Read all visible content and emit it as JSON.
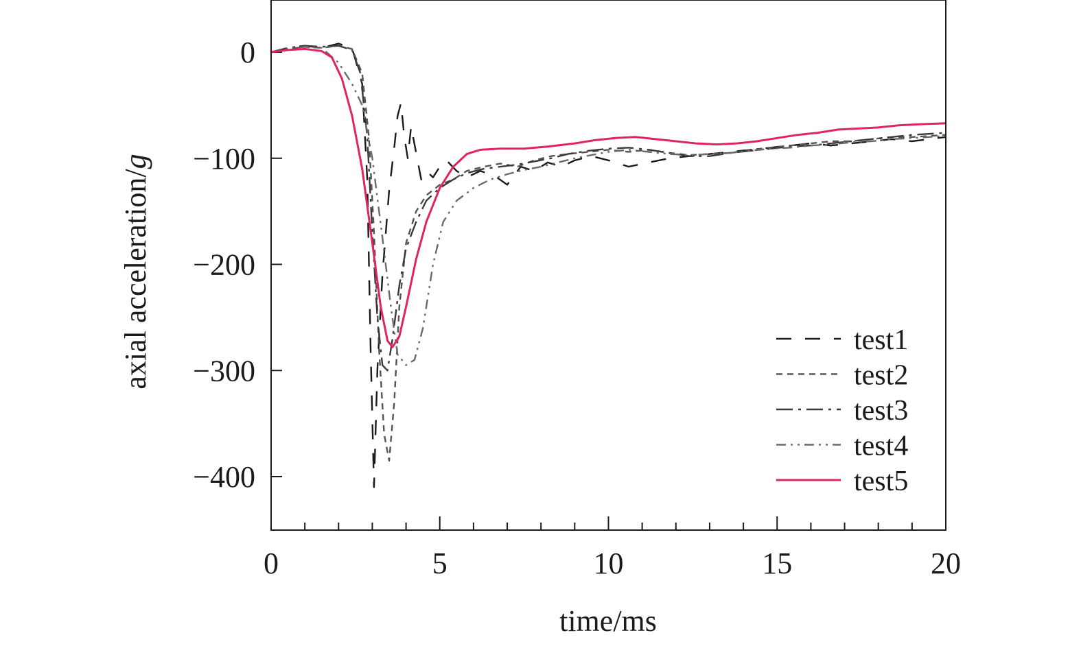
{
  "chart_data": {
    "type": "line",
    "title": "",
    "xlabel": "time/ms",
    "ylabel_main": "axial acceleration/",
    "ylabel_unit": "g",
    "xlim": [
      0,
      20
    ],
    "ylim": [
      -450,
      50
    ],
    "x_ticks": [
      0,
      5,
      10,
      15,
      20
    ],
    "x_tick_labels": [
      "0",
      "5",
      "10",
      "15",
      "20"
    ],
    "x_minor_step": 1,
    "y_ticks": [
      0,
      -100,
      -200,
      -300,
      -400
    ],
    "y_tick_labels": [
      "0",
      "−100",
      "−200",
      "−300",
      "−400"
    ],
    "grid": false,
    "legend_position": "lower-right",
    "series": [
      {
        "name": "test1",
        "color": "#1a1a1a",
        "dash": "22,20",
        "points": [
          [
            0,
            0
          ],
          [
            0.5,
            4
          ],
          [
            1,
            6
          ],
          [
            1.5,
            4
          ],
          [
            2,
            8
          ],
          [
            2.4,
            4
          ],
          [
            2.7,
            -30
          ],
          [
            2.85,
            -120
          ],
          [
            2.95,
            -280
          ],
          [
            3.05,
            -410
          ],
          [
            3.15,
            -300
          ],
          [
            3.3,
            -210
          ],
          [
            3.5,
            -130
          ],
          [
            3.65,
            -90
          ],
          [
            3.75,
            -60
          ],
          [
            3.85,
            -48
          ],
          [
            3.95,
            -80
          ],
          [
            4.05,
            -100
          ],
          [
            4.15,
            -70
          ],
          [
            4.3,
            -95
          ],
          [
            4.45,
            -120
          ],
          [
            4.6,
            -112
          ],
          [
            4.8,
            -118
          ],
          [
            5,
            -108
          ],
          [
            5.2,
            -102
          ],
          [
            5.5,
            -112
          ],
          [
            5.8,
            -118
          ],
          [
            6.2,
            -112
          ],
          [
            6.6,
            -116
          ],
          [
            7,
            -125
          ],
          [
            7.4,
            -108
          ],
          [
            7.8,
            -112
          ],
          [
            8.2,
            -104
          ],
          [
            8.6,
            -108
          ],
          [
            9,
            -102
          ],
          [
            9.5,
            -98
          ],
          [
            10,
            -102
          ],
          [
            10.6,
            -108
          ],
          [
            11.2,
            -104
          ],
          [
            11.8,
            -100
          ],
          [
            12.4,
            -98
          ],
          [
            13,
            -96
          ],
          [
            13.6,
            -94
          ],
          [
            14.2,
            -92
          ],
          [
            14.8,
            -90
          ],
          [
            15.4,
            -88
          ],
          [
            16,
            -86
          ],
          [
            16.6,
            -88
          ],
          [
            17.2,
            -86
          ],
          [
            17.8,
            -84
          ],
          [
            18.4,
            -82
          ],
          [
            19,
            -84
          ],
          [
            19.5,
            -82
          ],
          [
            20,
            -80
          ]
        ]
      },
      {
        "name": "test2",
        "color": "#555555",
        "dash": "9,7",
        "points": [
          [
            0,
            0
          ],
          [
            0.5,
            3
          ],
          [
            1,
            5
          ],
          [
            1.5,
            4
          ],
          [
            2,
            6
          ],
          [
            2.4,
            3
          ],
          [
            2.7,
            -20
          ],
          [
            2.9,
            -80
          ],
          [
            3.05,
            -170
          ],
          [
            3.2,
            -280
          ],
          [
            3.35,
            -360
          ],
          [
            3.5,
            -385
          ],
          [
            3.65,
            -330
          ],
          [
            3.8,
            -240
          ],
          [
            4,
            -180
          ],
          [
            4.3,
            -150
          ],
          [
            4.6,
            -135
          ],
          [
            5,
            -125
          ],
          [
            5.4,
            -120
          ],
          [
            5.8,
            -112
          ],
          [
            6.3,
            -108
          ],
          [
            6.8,
            -105
          ],
          [
            7.3,
            -108
          ],
          [
            7.8,
            -102
          ],
          [
            8.3,
            -98
          ],
          [
            8.8,
            -96
          ],
          [
            9.4,
            -94
          ],
          [
            10,
            -92
          ],
          [
            10.6,
            -94
          ],
          [
            11.2,
            -92
          ],
          [
            11.8,
            -95
          ],
          [
            12.4,
            -97
          ],
          [
            13,
            -96
          ],
          [
            13.6,
            -95
          ],
          [
            14.2,
            -92
          ],
          [
            14.8,
            -90
          ],
          [
            15.4,
            -88
          ],
          [
            16,
            -86
          ],
          [
            16.6,
            -84
          ],
          [
            17.2,
            -84
          ],
          [
            17.8,
            -82
          ],
          [
            18.4,
            -80
          ],
          [
            19,
            -80
          ],
          [
            19.5,
            -79
          ],
          [
            20,
            -78
          ]
        ]
      },
      {
        "name": "test3",
        "color": "#3a3a3a",
        "dash": "24,8,4,8",
        "points": [
          [
            0,
            0
          ],
          [
            0.5,
            4
          ],
          [
            1,
            6
          ],
          [
            1.5,
            5
          ],
          [
            2,
            6
          ],
          [
            2.4,
            2
          ],
          [
            2.65,
            -20
          ],
          [
            2.85,
            -80
          ],
          [
            3,
            -170
          ],
          [
            3.15,
            -250
          ],
          [
            3.3,
            -295
          ],
          [
            3.45,
            -300
          ],
          [
            3.6,
            -270
          ],
          [
            3.8,
            -220
          ],
          [
            4,
            -185
          ],
          [
            4.3,
            -160
          ],
          [
            4.6,
            -140
          ],
          [
            5,
            -128
          ],
          [
            5.4,
            -120
          ],
          [
            5.8,
            -114
          ],
          [
            6.3,
            -110
          ],
          [
            6.8,
            -108
          ],
          [
            7.3,
            -106
          ],
          [
            7.8,
            -103
          ],
          [
            8.3,
            -100
          ],
          [
            8.8,
            -96
          ],
          [
            9.4,
            -93
          ],
          [
            10,
            -91
          ],
          [
            10.6,
            -90
          ],
          [
            11.2,
            -92
          ],
          [
            11.8,
            -95
          ],
          [
            12.4,
            -98
          ],
          [
            13,
            -98
          ],
          [
            13.6,
            -95
          ],
          [
            14.2,
            -93
          ],
          [
            14.8,
            -91
          ],
          [
            15.4,
            -89
          ],
          [
            16,
            -88
          ],
          [
            16.6,
            -86
          ],
          [
            17.2,
            -84
          ],
          [
            17.8,
            -82
          ],
          [
            18.4,
            -80
          ],
          [
            19,
            -78
          ],
          [
            19.5,
            -77
          ],
          [
            20,
            -76
          ]
        ]
      },
      {
        "name": "test4",
        "color": "#6a6a6a",
        "dash": "14,7,3,7,3,7",
        "points": [
          [
            0,
            0
          ],
          [
            0.5,
            3
          ],
          [
            1,
            5
          ],
          [
            1.5,
            4
          ],
          [
            2,
            -10
          ],
          [
            2.4,
            -30
          ],
          [
            2.7,
            -50
          ],
          [
            3,
            -100
          ],
          [
            3.3,
            -175
          ],
          [
            3.55,
            -240
          ],
          [
            3.75,
            -285
          ],
          [
            4,
            -295
          ],
          [
            4.25,
            -290
          ],
          [
            4.5,
            -260
          ],
          [
            4.8,
            -200
          ],
          [
            5.1,
            -160
          ],
          [
            5.5,
            -140
          ],
          [
            6,
            -128
          ],
          [
            6.5,
            -120
          ],
          [
            7,
            -115
          ],
          [
            7.5,
            -111
          ],
          [
            8,
            -108
          ],
          [
            8.5,
            -104
          ],
          [
            9,
            -100
          ],
          [
            9.5,
            -97
          ],
          [
            10,
            -94
          ],
          [
            10.6,
            -92
          ],
          [
            11.2,
            -94
          ],
          [
            11.8,
            -96
          ],
          [
            12.4,
            -97
          ],
          [
            13,
            -96
          ],
          [
            13.6,
            -95
          ],
          [
            14.2,
            -93
          ],
          [
            14.8,
            -91
          ],
          [
            15.4,
            -90
          ],
          [
            16,
            -88
          ],
          [
            16.6,
            -87
          ],
          [
            17.2,
            -85
          ],
          [
            17.8,
            -84
          ],
          [
            18.4,
            -82
          ],
          [
            19,
            -81
          ],
          [
            19.5,
            -80
          ],
          [
            20,
            -79
          ]
        ]
      },
      {
        "name": "test5",
        "color": "#e0245e",
        "dash": "",
        "points": [
          [
            0,
            0
          ],
          [
            0.5,
            2
          ],
          [
            1,
            3
          ],
          [
            1.5,
            1
          ],
          [
            1.8,
            -5
          ],
          [
            2.1,
            -25
          ],
          [
            2.4,
            -60
          ],
          [
            2.7,
            -110
          ],
          [
            3,
            -180
          ],
          [
            3.25,
            -240
          ],
          [
            3.45,
            -272
          ],
          [
            3.6,
            -278
          ],
          [
            3.8,
            -268
          ],
          [
            4,
            -240
          ],
          [
            4.3,
            -195
          ],
          [
            4.6,
            -160
          ],
          [
            5,
            -128
          ],
          [
            5.4,
            -108
          ],
          [
            5.8,
            -96
          ],
          [
            6.2,
            -92
          ],
          [
            6.8,
            -91
          ],
          [
            7.5,
            -91
          ],
          [
            8.2,
            -89
          ],
          [
            9,
            -86
          ],
          [
            9.6,
            -83
          ],
          [
            10.2,
            -81
          ],
          [
            10.8,
            -80
          ],
          [
            11.4,
            -82
          ],
          [
            12,
            -84
          ],
          [
            12.6,
            -86
          ],
          [
            13.2,
            -87
          ],
          [
            13.8,
            -86
          ],
          [
            14.4,
            -84
          ],
          [
            15,
            -81
          ],
          [
            15.6,
            -78
          ],
          [
            16.2,
            -76
          ],
          [
            16.8,
            -73
          ],
          [
            17.4,
            -72
          ],
          [
            18,
            -71
          ],
          [
            18.6,
            -69
          ],
          [
            19.2,
            -68
          ],
          [
            20,
            -67
          ]
        ]
      }
    ]
  }
}
